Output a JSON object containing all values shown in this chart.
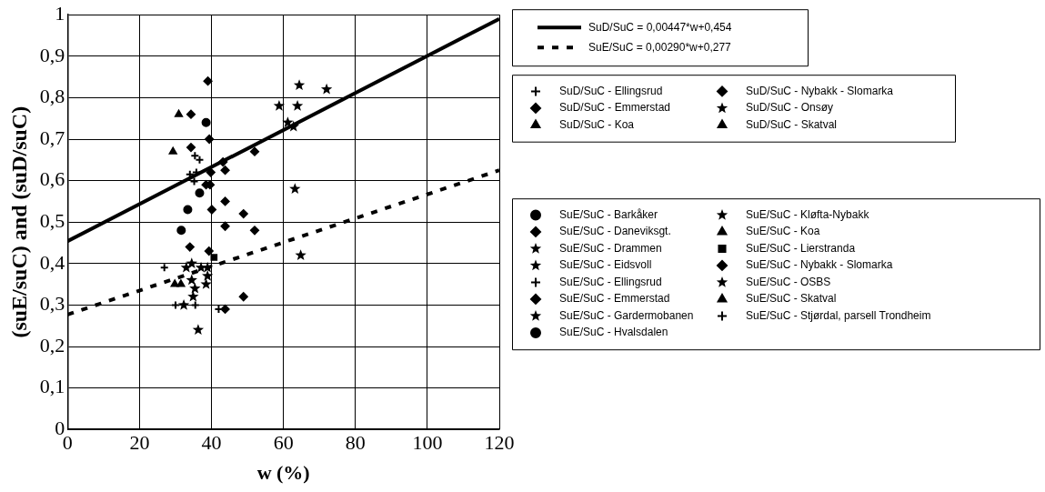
{
  "chart_data": {
    "type": "scatter",
    "xlabel": "w (%)",
    "ylabel": "(suE/suC) and (suD/suC)",
    "xlim": [
      0,
      120
    ],
    "xticks": [
      0,
      20,
      40,
      60,
      80,
      100,
      120
    ],
    "ylim": [
      0,
      1
    ],
    "yticks": [
      0,
      {
        "value": 0.1,
        "label": "0,1"
      },
      {
        "value": 0.2,
        "label": "0,2"
      },
      {
        "value": 0.3,
        "label": "0,3"
      },
      {
        "value": 0.4,
        "label": "0,4"
      },
      {
        "value": 0.5,
        "label": "0,5"
      },
      {
        "value": 0.6,
        "label": "0,6"
      },
      {
        "value": 0.7,
        "label": "0,7"
      },
      {
        "value": 0.8,
        "label": "0,8"
      },
      {
        "value": 0.9,
        "label": "0,9"
      },
      1
    ],
    "grid": true,
    "legend": "right",
    "series": [
      {
        "name": "SuD/SuC = 0,00447*w+0,454",
        "type": "line",
        "line_style": "solid",
        "color": "#000000",
        "x": [
          0,
          120
        ],
        "values": [
          0.454,
          0.99
        ]
      },
      {
        "name": "SuE/SuC = 0,00290*w+0,277",
        "type": "line",
        "line_style": "dashed",
        "color": "#000000",
        "x": [
          0,
          120
        ],
        "values": [
          0.277,
          0.625
        ]
      },
      {
        "name": "SuD/SuC - Ellingsrud",
        "marker": "cross",
        "color": "#000000",
        "x": [
          35.4,
          36.7,
          34,
          35.2,
          35.8
        ],
        "values": [
          0.66,
          0.65,
          0.615,
          0.598,
          0.62
        ]
      },
      {
        "name": "SuD/SuC - Emmerstad",
        "marker": "diamond",
        "color": "#000000",
        "x": [
          39,
          39.4,
          43.2,
          43.8,
          52,
          39.8,
          38.5,
          43.8,
          48.9
        ],
        "values": [
          0.84,
          0.7,
          0.645,
          0.625,
          0.67,
          0.62,
          0.59,
          0.55,
          0.52
        ]
      },
      {
        "name": "SuD/SuC - Koa",
        "marker": "triangle",
        "color": "#000000",
        "x": [
          29.3
        ],
        "values": [
          0.67
        ]
      },
      {
        "name": "SuD/SuC - Nybakk - Slomarka",
        "marker": "diamond",
        "color": "#000000",
        "x": [
          34.3,
          34.3
        ],
        "values": [
          0.76,
          0.68
        ]
      },
      {
        "name": "SuD/SuC - Onsøy",
        "marker": "star",
        "color": "#000000",
        "x": [
          64.4,
          72,
          58.8,
          63.9,
          61.2,
          62.8,
          63.2
        ],
        "values": [
          0.83,
          0.82,
          0.78,
          0.78,
          0.74,
          0.73,
          0.58
        ]
      },
      {
        "name": "SuD/SuC - Skatval",
        "marker": "triangle",
        "color": "#000000",
        "x": [
          30.9
        ],
        "values": [
          0.76
        ]
      },
      {
        "name": "SuE/SuC - Barkåker",
        "marker": "circle",
        "color": "#000000",
        "x": [
          38.5,
          31.6,
          36.7
        ],
        "values": [
          0.74,
          0.48,
          0.57
        ]
      },
      {
        "name": "SuE/SuC - Daneviksgt.",
        "marker": "diamond",
        "color": "#000000",
        "x": [
          34
        ],
        "values": [
          0.44
        ]
      },
      {
        "name": "SuE/SuC - Drammen",
        "marker": "star",
        "color": "#000000",
        "x": [
          34.5,
          34.5
        ],
        "values": [
          0.4,
          0.36
        ]
      },
      {
        "name": "SuE/SuC - Eidsvoll",
        "marker": "star",
        "color": "#000000",
        "x": [
          33,
          34.9
        ],
        "values": [
          0.39,
          0.32
        ]
      },
      {
        "name": "SuE/SuC - Ellingsrud",
        "marker": "cross",
        "color": "#000000",
        "x": [
          35.5
        ],
        "values": [
          0.3
        ]
      },
      {
        "name": "SuE/SuC - Emmerstad",
        "marker": "diamond",
        "color": "#000000",
        "x": [
          39.6,
          40.1,
          43.8,
          52
        ],
        "values": [
          0.59,
          0.53,
          0.49,
          0.48
        ]
      },
      {
        "name": "SuE/SuC - Gardermobanen",
        "marker": "star",
        "color": "#000000",
        "x": [
          37.1,
          38.9,
          38.9,
          38.5,
          35.4
        ],
        "values": [
          0.39,
          0.39,
          0.37,
          0.35,
          0.34
        ]
      },
      {
        "name": "SuE/SuC - Hvalsdalen",
        "marker": "circle",
        "color": "#000000",
        "x": [
          33.4
        ],
        "values": [
          0.53
        ]
      },
      {
        "name": "SuE/SuC - Kløfta-Nybakk",
        "marker": "star",
        "color": "#000000",
        "x": [
          32.3,
          36.3
        ],
        "values": [
          0.3,
          0.24
        ]
      },
      {
        "name": "SuE/SuC - Koa",
        "marker": "triangle",
        "color": "#000000",
        "x": [
          29.8
        ],
        "values": [
          0.35
        ]
      },
      {
        "name": "SuE/SuC - Lierstranda",
        "marker": "square",
        "color": "#000000",
        "x": [
          40.7
        ],
        "values": [
          0.415
        ]
      },
      {
        "name": "SuE/SuC - Nybakk - Slomarka",
        "marker": "diamond",
        "color": "#000000",
        "x": [
          39.3,
          43.8,
          48.9
        ],
        "values": [
          0.43,
          0.29,
          0.32
        ]
      },
      {
        "name": "SuE/SuC - OSBS",
        "marker": "star",
        "color": "#000000",
        "x": [
          64.8
        ],
        "values": [
          0.42
        ]
      },
      {
        "name": "SuE/SuC - Skatval",
        "marker": "triangle",
        "color": "#000000",
        "x": [
          31.5
        ],
        "values": [
          0.35
        ]
      },
      {
        "name": "SuE/SuC - Stjørdal, parsell Trondheim",
        "marker": "cross",
        "color": "#000000",
        "x": [
          26.9,
          30,
          42
        ],
        "values": [
          0.39,
          0.3,
          0.29
        ]
      }
    ]
  }
}
